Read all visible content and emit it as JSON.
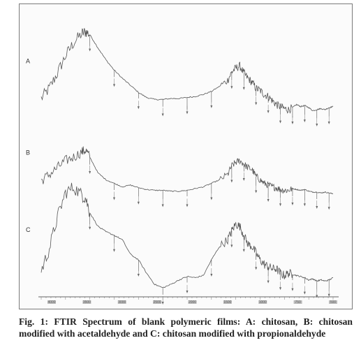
{
  "figure": {
    "caption": "Fig. 1: FTIR Spectrum of blank polymeric films: A: chitosan, B: chitosan modified with acetaldehyde and C: chitosan modified with propionaldehyde"
  },
  "chart_data": {
    "type": "line",
    "title": "",
    "xlabel": "",
    "ylabel": "",
    "x_reversed": true,
    "xlim": [
      4000,
      400
    ],
    "x_ticks": [
      "4000",
      "3500",
      "3000",
      "2500",
      "2000",
      "1500",
      "1000",
      "750",
      "500"
    ],
    "grid": false,
    "legend": "none",
    "line_color": "#555555",
    "series": [
      {
        "name": "A",
        "points": [
          [
            4000,
            20
          ],
          [
            3900,
            30
          ],
          [
            3800,
            45
          ],
          [
            3700,
            62
          ],
          [
            3600,
            75
          ],
          [
            3500,
            84
          ],
          [
            3450,
            86
          ],
          [
            3400,
            83
          ],
          [
            3300,
            70
          ],
          [
            3200,
            58
          ],
          [
            3100,
            48
          ],
          [
            3000,
            40
          ],
          [
            2900,
            33
          ],
          [
            2800,
            26
          ],
          [
            2700,
            21
          ],
          [
            2600,
            19
          ],
          [
            2500,
            19
          ],
          [
            2400,
            20
          ],
          [
            2300,
            20
          ],
          [
            2200,
            21
          ],
          [
            2100,
            22
          ],
          [
            2000,
            24
          ],
          [
            1900,
            27
          ],
          [
            1800,
            32
          ],
          [
            1700,
            38
          ],
          [
            1650,
            46
          ],
          [
            1600,
            50
          ],
          [
            1550,
            52
          ],
          [
            1500,
            45
          ],
          [
            1450,
            40
          ],
          [
            1400,
            36
          ],
          [
            1350,
            30
          ],
          [
            1300,
            28
          ],
          [
            1250,
            24
          ],
          [
            1200,
            22
          ],
          [
            1150,
            18
          ],
          [
            1100,
            14
          ],
          [
            1050,
            12
          ],
          [
            1000,
            10
          ],
          [
            950,
            9
          ],
          [
            900,
            11
          ],
          [
            850,
            14
          ],
          [
            800,
            12
          ],
          [
            750,
            13
          ],
          [
            700,
            11
          ],
          [
            650,
            8
          ],
          [
            600,
            9
          ],
          [
            550,
            10
          ],
          [
            500,
            9
          ],
          [
            450,
            11
          ],
          [
            400,
            12
          ]
        ]
      },
      {
        "name": "B",
        "points": [
          [
            4000,
            25
          ],
          [
            3900,
            32
          ],
          [
            3800,
            40
          ],
          [
            3700,
            48
          ],
          [
            3600,
            52
          ],
          [
            3500,
            58
          ],
          [
            3450,
            60
          ],
          [
            3400,
            52
          ],
          [
            3300,
            34
          ],
          [
            3200,
            26
          ],
          [
            3100,
            22
          ],
          [
            3000,
            18
          ],
          [
            2900,
            20
          ],
          [
            2800,
            17
          ],
          [
            2700,
            15
          ],
          [
            2600,
            14
          ],
          [
            2500,
            14
          ],
          [
            2400,
            13
          ],
          [
            2300,
            13
          ],
          [
            2200,
            14
          ],
          [
            2100,
            16
          ],
          [
            2000,
            18
          ],
          [
            1900,
            22
          ],
          [
            1800,
            26
          ],
          [
            1700,
            32
          ],
          [
            1650,
            42
          ],
          [
            1600,
            46
          ],
          [
            1550,
            48
          ],
          [
            1500,
            44
          ],
          [
            1450,
            40
          ],
          [
            1400,
            38
          ],
          [
            1350,
            30
          ],
          [
            1300,
            26
          ],
          [
            1250,
            22
          ],
          [
            1200,
            20
          ],
          [
            1150,
            18
          ],
          [
            1100,
            17
          ],
          [
            1050,
            15
          ],
          [
            1000,
            14
          ],
          [
            950,
            14
          ],
          [
            900,
            16
          ],
          [
            850,
            15
          ],
          [
            800,
            14
          ],
          [
            750,
            15
          ],
          [
            700,
            13
          ],
          [
            650,
            12
          ],
          [
            600,
            12
          ],
          [
            550,
            11
          ],
          [
            500,
            12
          ],
          [
            450,
            11
          ],
          [
            400,
            10
          ]
        ]
      },
      {
        "name": "C",
        "points": [
          [
            4000,
            20
          ],
          [
            3900,
            40
          ],
          [
            3800,
            68
          ],
          [
            3700,
            90
          ],
          [
            3600,
            95
          ],
          [
            3500,
            88
          ],
          [
            3450,
            85
          ],
          [
            3400,
            72
          ],
          [
            3300,
            60
          ],
          [
            3200,
            55
          ],
          [
            3100,
            52
          ],
          [
            3000,
            48
          ],
          [
            2900,
            35
          ],
          [
            2800,
            30
          ],
          [
            2700,
            18
          ],
          [
            2600,
            8
          ],
          [
            2500,
            5
          ],
          [
            2400,
            8
          ],
          [
            2300,
            12
          ],
          [
            2200,
            15
          ],
          [
            2100,
            14
          ],
          [
            2000,
            16
          ],
          [
            1900,
            30
          ],
          [
            1800,
            42
          ],
          [
            1700,
            48
          ],
          [
            1650,
            56
          ],
          [
            1600,
            62
          ],
          [
            1550,
            60
          ],
          [
            1500,
            52
          ],
          [
            1450,
            44
          ],
          [
            1400,
            42
          ],
          [
            1350,
            36
          ],
          [
            1300,
            30
          ],
          [
            1250,
            26
          ],
          [
            1200,
            24
          ],
          [
            1150,
            22
          ],
          [
            1100,
            22
          ],
          [
            1050,
            18
          ],
          [
            1000,
            16
          ],
          [
            950,
            18
          ],
          [
            900,
            17
          ],
          [
            850,
            16
          ],
          [
            800,
            15
          ],
          [
            750,
            14
          ],
          [
            700,
            12
          ],
          [
            650,
            13
          ],
          [
            600,
            11
          ],
          [
            550,
            12
          ],
          [
            500,
            11
          ],
          [
            450,
            12
          ],
          [
            400,
            14
          ]
        ]
      }
    ]
  }
}
